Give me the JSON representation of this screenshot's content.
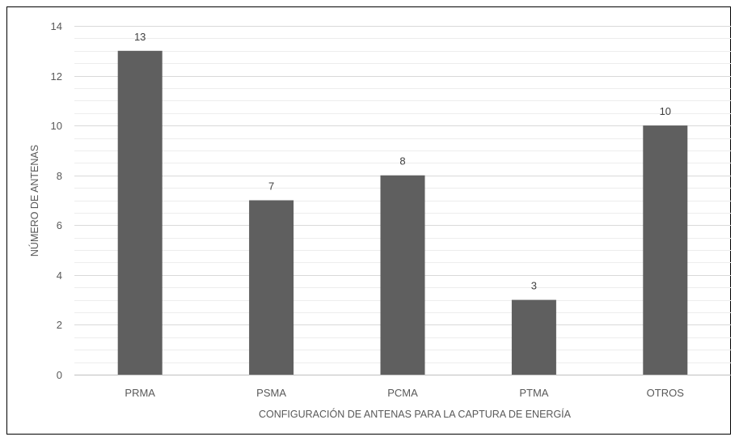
{
  "chart_data": {
    "type": "bar",
    "title": "",
    "xlabel": "CONFIGURACIÓN DE ANTENAS PARA LA CAPTURA DE ENERGÍA",
    "ylabel": "NÚMERO DE ANTENAS",
    "categories": [
      "PRMA",
      "PSMA",
      "PCMA",
      "PTMA",
      "OTROS"
    ],
    "values": [
      13,
      7,
      8,
      3,
      10
    ],
    "ylim": [
      0,
      14
    ],
    "yticks": [
      0,
      2,
      4,
      6,
      8,
      10,
      12,
      14
    ],
    "grid": true,
    "minor_grid": true,
    "data_labels": true,
    "legend": "none",
    "bar_color": "#5f5f5f"
  }
}
